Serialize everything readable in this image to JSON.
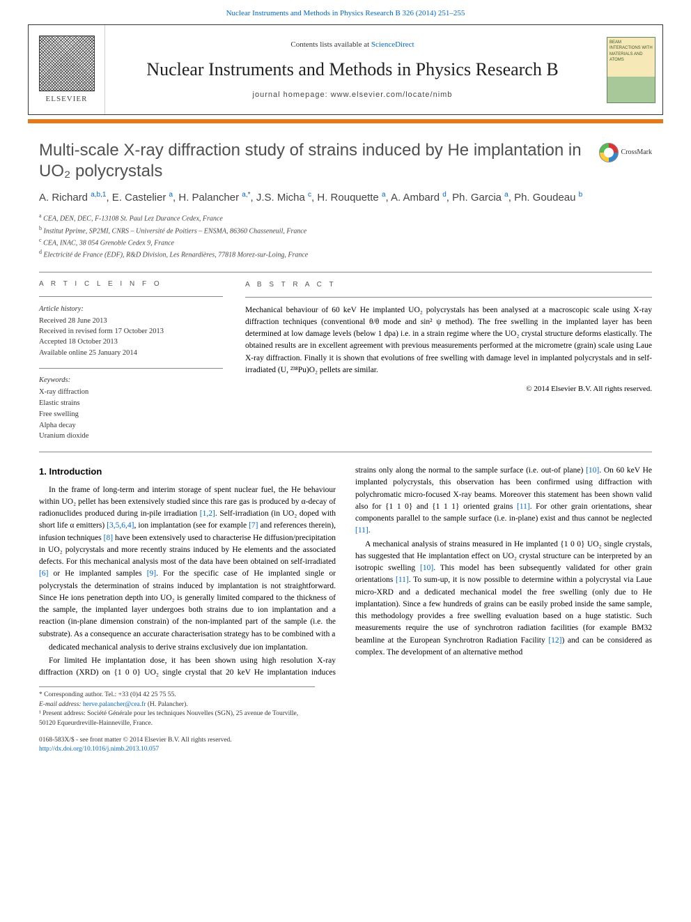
{
  "citation": {
    "text": "Nuclear Instruments and Methods in Physics Research B 326 (2014) 251–255",
    "href": "#"
  },
  "header": {
    "publisher_label": "ELSEVIER",
    "contents_prefix": "Contents lists available at ",
    "contents_link": "ScienceDirect",
    "journal": "Nuclear Instruments and Methods in Physics Research B",
    "homepage_label": "journal homepage: www.elsevier.com/locate/nimb",
    "cover_text": "BEAM INTERACTIONS WITH MATERIALS AND ATOMS"
  },
  "crossmark_label": "CrossMark",
  "title": "Multi-scale X-ray diffraction study of strains induced by He implantation in UO₂ polycrystals",
  "authors_html": "A. Richard <sup class='sup'>a,b,1</sup>, E. Castelier <sup class='sup'>a</sup>, H. Palancher <sup class='sup'>a,</sup><sup class='sup-plain'>*</sup>, J.S. Micha <sup class='sup'>c</sup>, H. Rouquette <sup class='sup'>a</sup>, A. Ambard <sup class='sup'>d</sup>, Ph. Garcia <sup class='sup'>a</sup>, Ph. Goudeau <sup class='sup'>b</sup>",
  "affiliations": [
    {
      "sup": "a",
      "text": "CEA, DEN, DEC, F-13108 St. Paul Lez Durance Cedex, France"
    },
    {
      "sup": "b",
      "text": "Institut Pprime, SP2MI, CNRS – Université de Poitiers – ENSMA, 86360 Chasseneuil, France"
    },
    {
      "sup": "c",
      "text": "CEA, INAC, 38 054 Grenoble Cedex 9, France"
    },
    {
      "sup": "d",
      "text": "Electricité de France (EDF), R&D Division, Les Renardières, 77818 Morez-sur-Loing, France"
    }
  ],
  "article_info": {
    "label": "A R T I C L E   I N F O",
    "history_head": "Article history:",
    "history": [
      "Received 28 June 2013",
      "Received in revised form 17 October 2013",
      "Accepted 18 October 2013",
      "Available online 25 January 2014"
    ],
    "keywords_head": "Keywords:",
    "keywords": [
      "X-ray diffraction",
      "Elastic strains",
      "Free swelling",
      "Alpha decay",
      "Uranium dioxide"
    ]
  },
  "abstract": {
    "label": "A B S T R A C T",
    "text": "Mechanical behaviour of 60 keV He implanted UO₂ polycrystals has been analysed at a macroscopic scale using X-ray diffraction techniques (conventional θ/θ mode and sin² ψ method). The free swelling in the implanted layer has been determined at low damage levels (below 1 dpa) i.e. in a strain regime where the UO₂ crystal structure deforms elastically. The obtained results are in excellent agreement with previous measurements performed at the micrometre (grain) scale using Laue X-ray diffraction. Finally it is shown that evolutions of free swelling with damage level in implanted polycrystals and in self-irradiated (U, ²³⁸Pu)O₂ pellets are similar.",
    "copyright": "© 2014 Elsevier B.V. All rights reserved."
  },
  "body": {
    "section_heading": "1. Introduction",
    "paragraphs": [
      "In the frame of long-term and interim storage of spent nuclear fuel, the He behaviour within UO₂ pellet has been extensively studied since this rare gas is produced by α-decay of radionuclides produced during in-pile irradiation [1,2]. Self-irradiation (in UO₂ doped with short life α emitters) [3,5,6,4], ion implantation (see for example [7] and references therein), infusion techniques [8] have been extensively used to characterise He diffusion/precipitation in UO₂ polycrystals and more recently strains induced by He elements and the associated defects. For this mechanical analysis most of the data have been obtained on self-irradiated [6] or He implanted samples [9]. For the specific case of He implanted single or polycrystals the determination of strains induced by implantation is not straightforward. Since He ions penetration depth into UO₂ is generally limited compared to the thickness of the sample, the implanted layer undergoes both strains due to ion implantation and a reaction (in-plane dimension constrain) of the non-implanted part of the sample (i.e. the substrate). As a consequence an accurate characterisation strategy has to be combined with a",
      "dedicated mechanical analysis to derive strains exclusively due ion implantation.",
      "For limited He implantation dose, it has been shown using high resolution X-ray diffraction (XRD) on {1 0 0} UO₂ single crystal that 20 keV He implantation induces strains only along the normal to the sample surface (i.e. out-of plane) [10]. On 60 keV He implanted polycrystals, this observation has been confirmed using diffraction with polychromatic micro-focused X-ray beams. Moreover this statement has been shown valid also for {1 1 0} and {1 1 1} oriented grains [11]. For other grain orientations, shear components parallel to the sample surface (i.e. in-plane) exist and thus cannot be neglected [11].",
      "A mechanical analysis of strains measured in He implanted {1 0 0} UO₂ single crystals, has suggested that He implantation effect on UO₂ crystal structure can be interpreted by an isotropic swelling [10]. This model has been subsequently validated for other grain orientations [11]. To sum-up, it is now possible to determine within a polycrystal via Laue micro-XRD and a dedicated mechanical model the free swelling (only due to He implantation). Since a few hundreds of grains can be easily probed inside the same sample, this methodology provides a free swelling evaluation based on a huge statistic. Such measurements require the use of synchrotron radiation facilities (for example BM32 beamline at the European Synchrotron Radiation Facility [12]) and can be considered as complex. The development of an alternative method"
    ],
    "ref_links": {
      "[1,2]": "#",
      "[3,5,6,4]": "#",
      "[7]": "#",
      "[8]": "#",
      "[6]": "#",
      "[9]": "#",
      "[10]": "#",
      "[11]": "#",
      "[12]": "#"
    }
  },
  "footnotes": {
    "corr": "* Corresponding author. Tel.: +33 (0)4 42 25 75 55.",
    "email_label": "E-mail address: ",
    "email": "herve.palancher@cea.fr",
    "email_suffix": " (H. Palancher).",
    "note1": "¹ Present address: Société Générale pour les techniques Nouvelles (SGN), 25 avenue de Tourville, 50120 Equeurdreville-Hainneville, France."
  },
  "bottom": {
    "issn_line": "0168-583X/$ - see front matter © 2014 Elsevier B.V. All rights reserved.",
    "doi": "http://dx.doi.org/10.1016/j.nimb.2013.10.057"
  },
  "colors": {
    "orange": "#e67817",
    "link": "#0066cc",
    "title_gray": "#505050",
    "rule": "#888888"
  }
}
